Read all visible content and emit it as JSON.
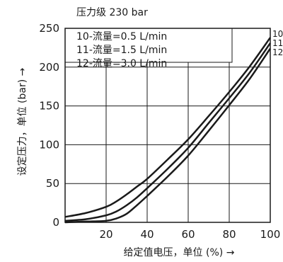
{
  "chart_data": {
    "type": "line",
    "title": "压力级 230 bar",
    "xlabel": "给定值电压，单位 (%) →",
    "ylabel": "设定压力，单位 (bar) →",
    "xlim": [
      0,
      100
    ],
    "ylim": [
      0,
      250
    ],
    "xticks": [
      20,
      40,
      60,
      80,
      100
    ],
    "yticks": [
      0,
      50,
      100,
      150,
      200,
      250
    ],
    "grid": true,
    "legend_position": "top-left",
    "legend": [
      "10-流量=0.5 L/min",
      "11-流量=1.5 L/min",
      "12-流量=3.0 L/min"
    ],
    "series": [
      {
        "name": "10",
        "x": [
          0,
          10,
          20,
          25,
          30,
          35,
          40,
          50,
          60,
          70,
          80,
          90,
          100
        ],
        "y": [
          7,
          12,
          20,
          27,
          36,
          46,
          56,
          81,
          107,
          137,
          168,
          201,
          238
        ]
      },
      {
        "name": "11",
        "x": [
          0,
          10,
          20,
          25,
          30,
          35,
          40,
          50,
          60,
          70,
          80,
          90,
          100
        ],
        "y": [
          2,
          4,
          9,
          14,
          22,
          32,
          44,
          69,
          96,
          128,
          160,
          193,
          231
        ]
      },
      {
        "name": "12",
        "x": [
          0,
          10,
          20,
          25,
          30,
          35,
          40,
          50,
          60,
          70,
          80,
          90,
          100
        ],
        "y": [
          0,
          1,
          2,
          5,
          11,
          22,
          34,
          59,
          86,
          118,
          151,
          185,
          224
        ]
      }
    ]
  }
}
